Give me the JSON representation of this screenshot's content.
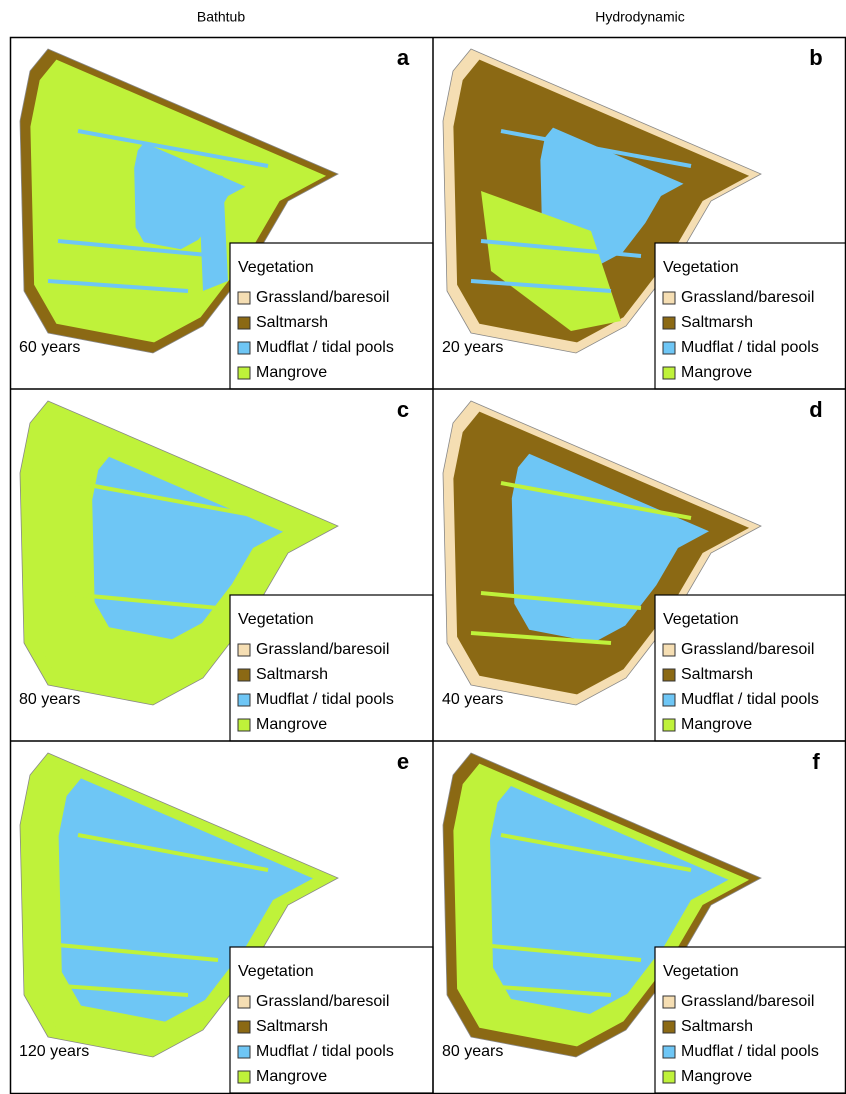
{
  "columns": [
    "Bathtub",
    "Hydrodynamic"
  ],
  "panels": [
    {
      "letter": "a",
      "duration": "60 years"
    },
    {
      "letter": "b",
      "duration": "20 years"
    },
    {
      "letter": "c",
      "duration": "80 years"
    },
    {
      "letter": "d",
      "duration": "40 years"
    },
    {
      "letter": "e",
      "duration": "120 years"
    },
    {
      "letter": "f",
      "duration": "80 years"
    }
  ],
  "legend": {
    "title": "Vegetation",
    "items": [
      {
        "label": "Grassland/baresoil",
        "color": "#f5deb3"
      },
      {
        "label": "Saltmarsh",
        "color": "#8b6914"
      },
      {
        "label": "Mudflat / tidal pools",
        "color": "#6ec6f5"
      },
      {
        "label": "Mangrove",
        "color": "#bff23a"
      }
    ]
  }
}
